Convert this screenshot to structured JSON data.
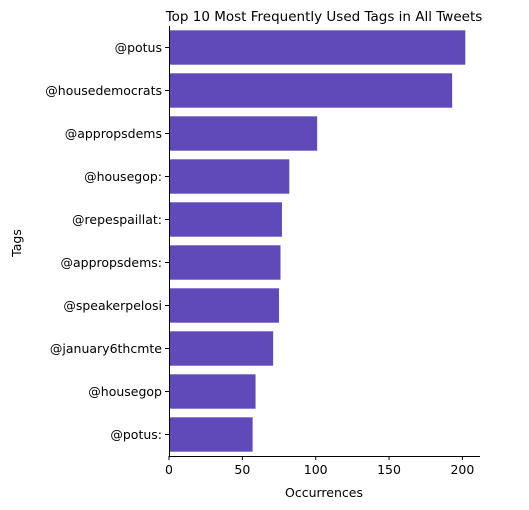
{
  "chart_data": {
    "type": "bar",
    "orientation": "horizontal",
    "title": "Top 10 Most Frequently Used Tags in All Tweets",
    "xlabel": "Occurrences",
    "ylabel": "Tags",
    "categories": [
      "@potus",
      "@housedemocrats",
      "@appropsdems",
      "@housegop:",
      "@repespaillat:",
      "@appropsdems:",
      "@speakerpelosi",
      "@january6thcmte",
      "@housegop",
      "@potus:"
    ],
    "values": [
      202,
      193,
      101,
      82,
      77,
      76,
      75,
      71,
      59,
      57
    ],
    "xlim": [
      0,
      212
    ],
    "xticks": [
      0,
      50,
      100,
      150,
      200
    ],
    "xtick_labels": [
      "0",
      "50",
      "100",
      "150",
      "200"
    ],
    "bar_color": "#6049b9",
    "grid": false,
    "legend": "none"
  }
}
